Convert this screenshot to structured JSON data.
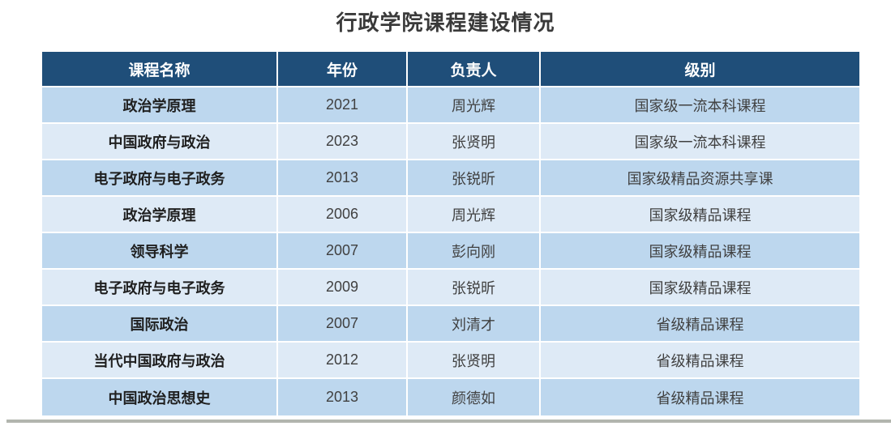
{
  "title": "行政学院课程建设情况",
  "table": {
    "columns": [
      "课程名称",
      "年份",
      "负责人",
      "级别"
    ],
    "rows": [
      [
        "政治学原理",
        "2021",
        "周光辉",
        "国家级一流本科课程"
      ],
      [
        "中国政府与政治",
        "2023",
        "张贤明",
        "国家级一流本科课程"
      ],
      [
        "电子政府与电子政务",
        "2013",
        "张锐昕",
        "国家级精品资源共享课"
      ],
      [
        "政治学原理",
        "2006",
        "周光辉",
        "国家级精品课程"
      ],
      [
        "领导科学",
        "2007",
        "彭向刚",
        "国家级精品课程"
      ],
      [
        "电子政府与电子政务",
        "2009",
        "张锐昕",
        "国家级精品课程"
      ],
      [
        "国际政治",
        "2007",
        "刘清才",
        "省级精品课程"
      ],
      [
        "当代中国政府与政治",
        "2012",
        "张贤明",
        "省级精品课程"
      ],
      [
        "中国政治思想史",
        "2013",
        "颜德如",
        "省级精品课程"
      ]
    ]
  },
  "colors": {
    "header_bg": "#1F4E79",
    "header_text": "#FFFFFF",
    "row_odd_bg": "#BDD7EE",
    "row_even_bg": "#DEEAF6",
    "body_text": "#404040",
    "title_text": "#3A3A3A",
    "bottom_bar": "#B2B5AE"
  }
}
